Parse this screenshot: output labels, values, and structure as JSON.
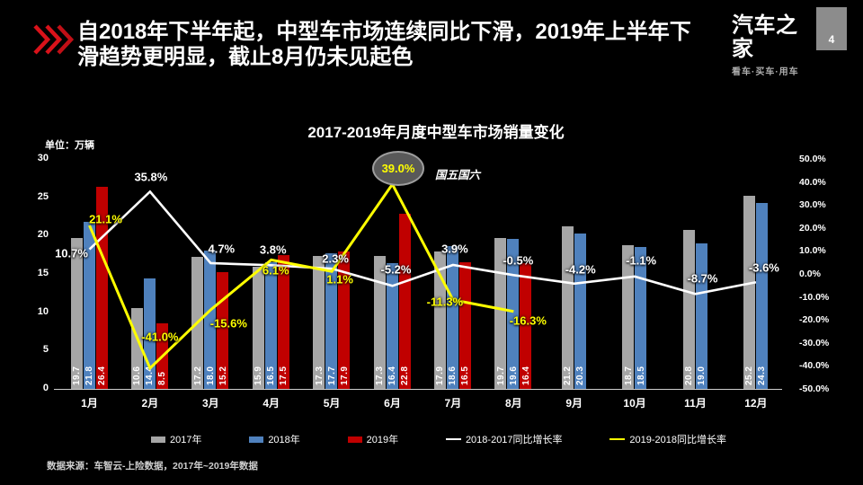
{
  "header": {
    "title_lines": [
      "自2018年下半年起，中型车市场连续同比下滑，2019年上半年下",
      "滑趋势更明显，截止8月仍未见起色"
    ],
    "accent_color": "#d9121a"
  },
  "logo": {
    "name": "汽车之家",
    "tagline": "看车·买车·用车",
    "page": "4"
  },
  "chart_data": {
    "type": "bar",
    "subtype": "grouped bars with two overlay growth-rate lines",
    "title": "2017-2019年月度中型车市场销量变化",
    "unit_label": "单位：万辆",
    "categories": [
      "1月",
      "2月",
      "3月",
      "4月",
      "5月",
      "6月",
      "7月",
      "8月",
      "9月",
      "10月",
      "11月",
      "12月"
    ],
    "series": [
      {
        "name": "2017年",
        "type": "bar",
        "color": "#a6a6a6",
        "values": [
          "19.7",
          "10.6",
          "17.2",
          "15.9",
          "17.3",
          "17.3",
          "17.9",
          "19.7",
          "21.2",
          "18.7",
          "20.8",
          "25.2"
        ]
      },
      {
        "name": "2018年",
        "type": "bar",
        "color": "#4f81bd",
        "values": [
          "21.8",
          "14.4",
          "18.0",
          "16.5",
          "17.7",
          "16.4",
          "18.6",
          "19.6",
          "20.3",
          "18.5",
          "19.0",
          "24.3"
        ]
      },
      {
        "name": "2019年",
        "type": "bar",
        "color": "#c00000",
        "values": [
          "26.4",
          "8.5",
          "15.2",
          "17.5",
          "17.9",
          "22.8",
          "16.5",
          "16.4",
          null,
          null,
          null,
          null
        ]
      },
      {
        "name": "2018-2017同比增长率",
        "type": "line",
        "color": "#ffffff",
        "values": [
          "10.7%",
          "35.8%",
          "4.7%",
          "3.8%",
          "2.3%",
          "-5.2%",
          "3.9%",
          "-0.5%",
          "-4.2%",
          "-1.1%",
          "-8.7%",
          "-3.6%"
        ]
      },
      {
        "name": "2019-2018同比增长率",
        "type": "line",
        "color": "#ffff00",
        "values": [
          "21.1%",
          "-41.0%",
          "-15.6%",
          "6.1%",
          "1.1%",
          "39.0%",
          "-11.3%",
          "-16.3%",
          null,
          null,
          null,
          null
        ]
      }
    ],
    "left_axis": {
      "ticks": [
        "0",
        "5",
        "10",
        "15",
        "20",
        "25",
        "30"
      ],
      "min": 0,
      "max": 30
    },
    "right_axis": {
      "ticks": [
        "50.0%",
        "40.0%",
        "30.0%",
        "20.0%",
        "10.0%",
        "0.0%",
        "-10.0%",
        "-20.0%",
        "-30.0%",
        "-40.0%",
        "-50.0%"
      ],
      "min": -50,
      "max": 50
    },
    "annotation": {
      "circled_value": "39.0%",
      "note": "国五国六"
    },
    "grid": "off",
    "legend_position": "bottom"
  },
  "footer": {
    "source": "数据来源：车智云-上险数据，2017年~2019年数据"
  }
}
